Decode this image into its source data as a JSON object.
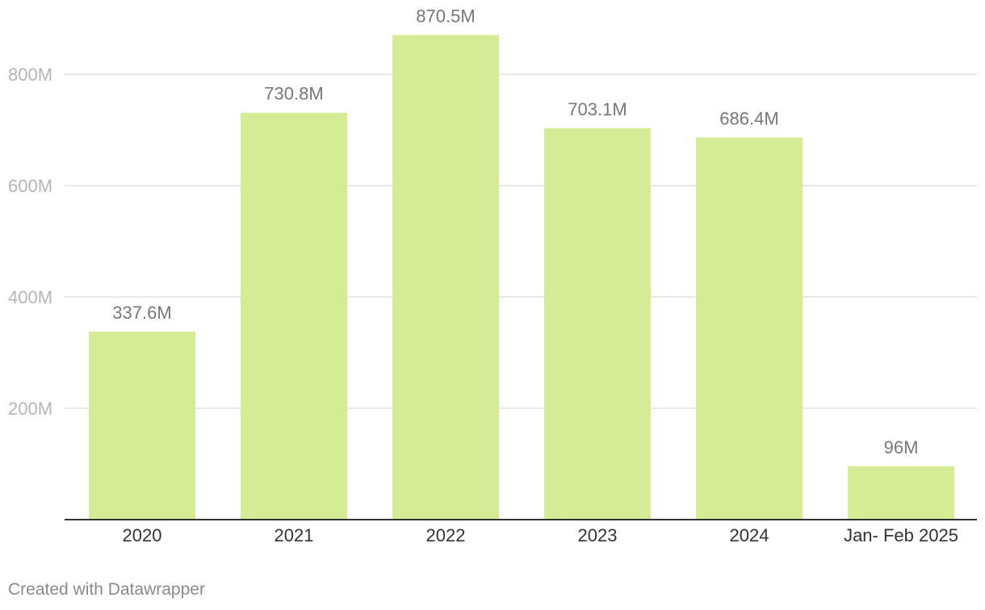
{
  "chart_data": {
    "type": "bar",
    "categories": [
      "2020",
      "2021",
      "2022",
      "2023",
      "2024",
      "Jan- Feb 2025"
    ],
    "values": [
      337.6,
      730.8,
      870.5,
      703.1,
      686.4,
      96
    ],
    "value_labels": [
      "337.6M",
      "730.8M",
      "870.5M",
      "703.1M",
      "686.4M",
      "96M"
    ],
    "y_ticks": [
      {
        "value": 200,
        "label": "200M"
      },
      {
        "value": 400,
        "label": "400M"
      },
      {
        "value": 600,
        "label": "600M"
      },
      {
        "value": 800,
        "label": "800M"
      }
    ],
    "ylim": [
      0,
      900
    ],
    "grid": true,
    "bar_color": "#d5eb95",
    "title": "",
    "xlabel": "",
    "ylabel": ""
  },
  "footer": {
    "credit": "Created with Datawrapper"
  }
}
